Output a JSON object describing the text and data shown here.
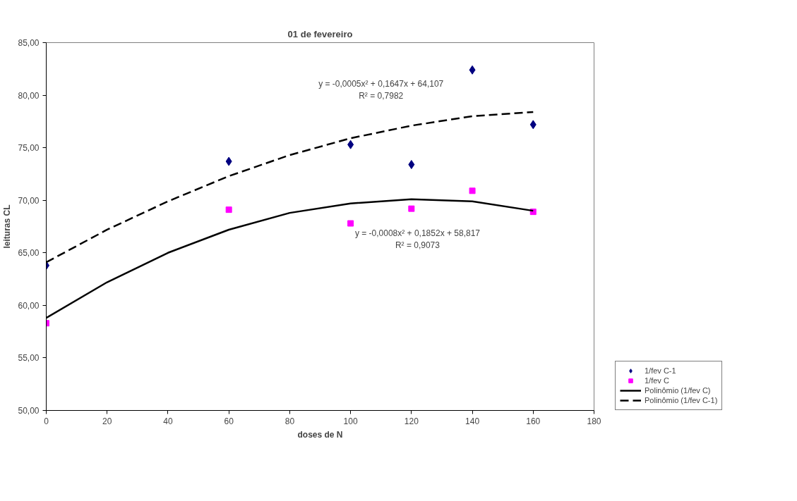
{
  "chart_data": {
    "type": "scatter",
    "title": "01 de fevereiro",
    "xlabel": "doses de N",
    "ylabel": "leituras CL",
    "xlim": [
      0,
      180
    ],
    "xticks": [
      0,
      20,
      40,
      60,
      80,
      100,
      120,
      140,
      160,
      180
    ],
    "ylim": [
      50,
      85
    ],
    "yticks": [
      {
        "value": 50,
        "label": "50,00"
      },
      {
        "value": 55,
        "label": "55,00"
      },
      {
        "value": 60,
        "label": "60,00"
      },
      {
        "value": 65,
        "label": "65,00"
      },
      {
        "value": 70,
        "label": "70,00"
      },
      {
        "value": 75,
        "label": "75,00"
      },
      {
        "value": 80,
        "label": "80,00"
      },
      {
        "value": 85,
        "label": "85,00"
      }
    ],
    "grid": false,
    "legend": "right",
    "series": [
      {
        "name": "1/fev C-1",
        "marker": "diamond",
        "color": "#000080",
        "x": [
          0,
          60,
          100,
          120,
          140,
          160
        ],
        "values": [
          63.8,
          73.7,
          75.3,
          73.4,
          82.4,
          77.2
        ]
      },
      {
        "name": "1/fev C",
        "marker": "square",
        "color": "#ff00ff",
        "x": [
          0,
          60,
          100,
          120,
          140,
          160
        ],
        "values": [
          58.3,
          69.1,
          67.8,
          69.2,
          70.9,
          68.9
        ]
      },
      {
        "name": "Polinômio (1/fev C)",
        "type": "line",
        "line_style": "solid",
        "color": "#000000",
        "x": [
          0,
          20,
          40,
          60,
          80,
          100,
          120,
          140,
          160
        ],
        "values": [
          58.8,
          62.2,
          65.0,
          67.2,
          68.8,
          69.7,
          70.1,
          69.9,
          69.0
        ]
      },
      {
        "name": "Polinômio (1/fev C-1)",
        "type": "line",
        "line_style": "dashed",
        "color": "#000000",
        "x": [
          0,
          20,
          40,
          60,
          80,
          100,
          120,
          140,
          160
        ],
        "values": [
          64.1,
          67.2,
          69.9,
          72.3,
          74.3,
          75.9,
          77.1,
          78.0,
          78.4
        ]
      }
    ],
    "annotations": [
      "y = -0,0005x² + 0,1647x + 64,107\nR² = 0,7982",
      "y = -0,0008x² + 0,1852x + 58,817\nR² = 0,9073"
    ]
  }
}
